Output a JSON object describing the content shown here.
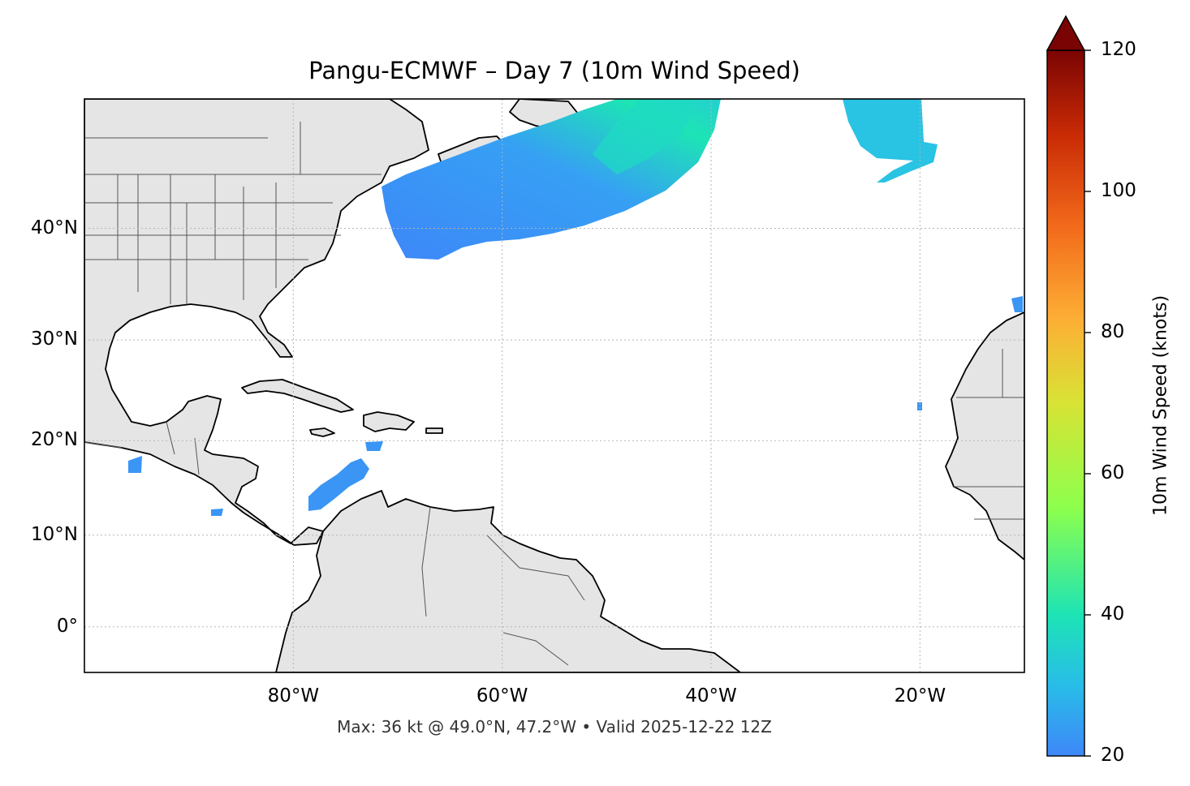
{
  "title": "Pangu-ECMWF – Day 7 (10m Wind Speed)",
  "footer": "Max: 36 kt @ 49.0°N, 47.2°W • Valid 2025-12-22 12Z",
  "map": {
    "extent": {
      "lon_min": -100,
      "lon_max": -10,
      "lat_min": -5,
      "lat_max": 50
    },
    "lat_ticks": [
      {
        "value": 40,
        "label": "40°N"
      },
      {
        "value": 30,
        "label": "30°N"
      },
      {
        "value": 20,
        "label": "20°N"
      },
      {
        "value": 10,
        "label": "10°N"
      },
      {
        "value": 0,
        "label": "0°"
      }
    ],
    "lon_ticks": [
      {
        "value": -80,
        "label": "80°W"
      },
      {
        "value": -60,
        "label": "60°W"
      },
      {
        "value": -40,
        "label": "40°W"
      },
      {
        "value": -20,
        "label": "20°W"
      }
    ],
    "land_color": "#e5e5e5",
    "ocean_color": "#ffffff",
    "max_marker": {
      "lat": 49.0,
      "lon": -47.2,
      "value_kt": 36
    }
  },
  "colorbar": {
    "label": "10m Wind Speed (knots)",
    "min": 20,
    "max": 120,
    "extend": "max",
    "extend_color": "#7a0403",
    "ticks": [
      {
        "value": 120,
        "label": "120"
      },
      {
        "value": 100,
        "label": "100"
      },
      {
        "value": 80,
        "label": "80"
      },
      {
        "value": 60,
        "label": "60"
      },
      {
        "value": 40,
        "label": "40"
      },
      {
        "value": 20,
        "label": "20"
      }
    ],
    "colors": [
      "#3e87f8",
      "#28bde8",
      "#1de4b5",
      "#8cff4d",
      "#d8e335",
      "#fdae35",
      "#f26a1b",
      "#c92b05",
      "#7a0403"
    ]
  }
}
